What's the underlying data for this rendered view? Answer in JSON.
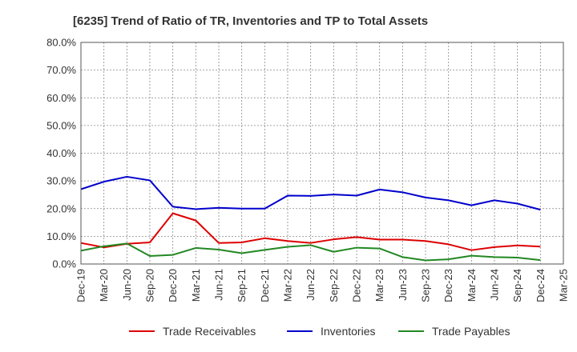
{
  "chart_data": {
    "type": "line",
    "title": "[6235]  Trend of Ratio of TR, Inventories and TP to Total Assets",
    "xlabel": "",
    "ylabel": "",
    "ylim": [
      0,
      80
    ],
    "yticks": [
      "0.0%",
      "10.0%",
      "20.0%",
      "30.0%",
      "40.0%",
      "50.0%",
      "60.0%",
      "70.0%",
      "80.0%"
    ],
    "ytick_values": [
      0,
      10,
      20,
      30,
      40,
      50,
      60,
      70,
      80
    ],
    "x_tick_labels": [
      "Dec-19",
      "Mar-20",
      "Jun-20",
      "Sep-20",
      "Dec-20",
      "Mar-21",
      "Jun-21",
      "Sep-21",
      "Dec-21",
      "Mar-22",
      "Jun-22",
      "Sep-22",
      "Dec-22",
      "Mar-23",
      "Jun-23",
      "Sep-23",
      "Dec-23",
      "Mar-24",
      "Jun-24",
      "Sep-24",
      "Dec-24",
      "Mar-25"
    ],
    "x": [
      "Dec-19",
      "Mar-20",
      "Jun-20",
      "Sep-20",
      "Dec-20",
      "Mar-21",
      "Jun-21",
      "Sep-21",
      "Dec-21",
      "Mar-22",
      "Jun-22",
      "Sep-22",
      "Dec-22",
      "Mar-23",
      "Jun-23",
      "Sep-23",
      "Dec-23",
      "Mar-24",
      "Jun-24",
      "Sep-24",
      "Dec-24"
    ],
    "grid": true,
    "legend_position": "bottom",
    "series": [
      {
        "name": "Trade Receivables",
        "color": "#dd0000",
        "values": [
          7.6,
          6.0,
          7.3,
          7.8,
          18.3,
          15.7,
          7.6,
          7.8,
          9.3,
          8.3,
          7.6,
          8.9,
          9.7,
          8.8,
          8.8,
          8.3,
          7.1,
          5.0,
          6.1,
          6.7,
          6.3
        ]
      },
      {
        "name": "Inventories",
        "color": "#0000cc",
        "values": [
          27.0,
          29.7,
          31.5,
          30.2,
          20.7,
          19.8,
          20.3,
          20.0,
          20.0,
          24.7,
          24.6,
          25.1,
          24.7,
          26.9,
          25.9,
          24.0,
          23.0,
          21.2,
          23.0,
          21.8,
          19.6
        ]
      },
      {
        "name": "Trade Payables",
        "color": "#228822",
        "values": [
          4.8,
          6.4,
          7.4,
          2.9,
          3.3,
          5.8,
          5.2,
          3.9,
          5.1,
          6.2,
          6.8,
          4.4,
          5.9,
          5.6,
          2.5,
          1.3,
          1.7,
          3.0,
          2.5,
          2.3,
          1.4
        ]
      }
    ]
  }
}
